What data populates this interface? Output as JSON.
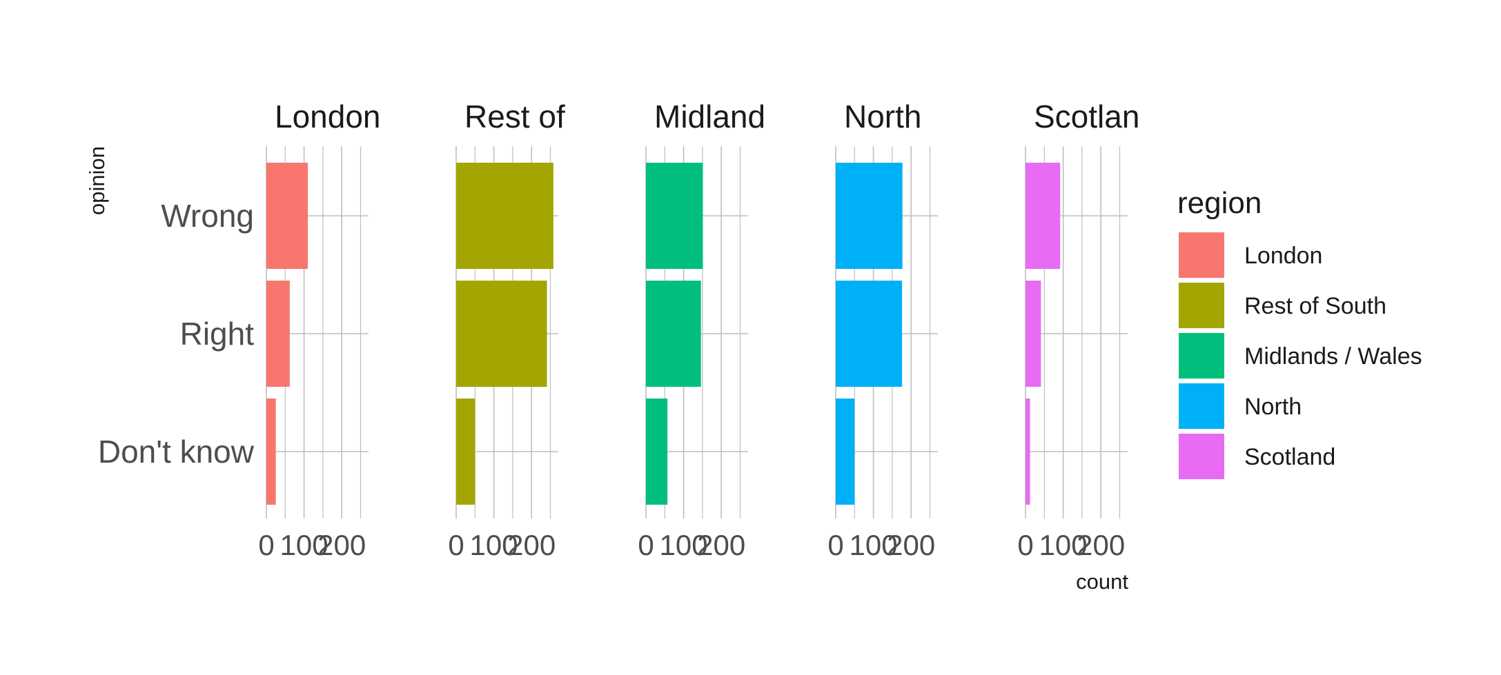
{
  "chart_data": {
    "type": "bar",
    "orientation": "horizontal",
    "facet_by": "region",
    "categories": [
      "Wrong",
      "Right",
      "Don't know"
    ],
    "panels": [
      {
        "label": "London",
        "values": [
          110,
          62,
          25
        ]
      },
      {
        "label": "Rest of",
        "values": [
          258,
          241,
          50
        ]
      },
      {
        "label": "Midland",
        "values": [
          151,
          146,
          57
        ]
      },
      {
        "label": "North",
        "values": [
          177,
          176,
          50
        ]
      },
      {
        "label": "Scotlan",
        "values": [
          92,
          41,
          12
        ]
      }
    ],
    "xlabel": "count",
    "ylabel": "opinion",
    "xlim": [
      0,
      268
    ],
    "xticks": [
      0,
      100,
      200
    ],
    "xtick_labels": [
      "0",
      "100",
      "200"
    ],
    "grid": true,
    "legend": {
      "title": "region",
      "position": "right",
      "items": [
        {
          "label": "London",
          "color": "#F8766D"
        },
        {
          "label": "Rest of South",
          "color": "#A3A500"
        },
        {
          "label": "Midlands / Wales",
          "color": "#00BF7D"
        },
        {
          "label": "North",
          "color": "#00B0F6"
        },
        {
          "label": "Scotland",
          "color": "#E76BF3"
        }
      ]
    }
  }
}
